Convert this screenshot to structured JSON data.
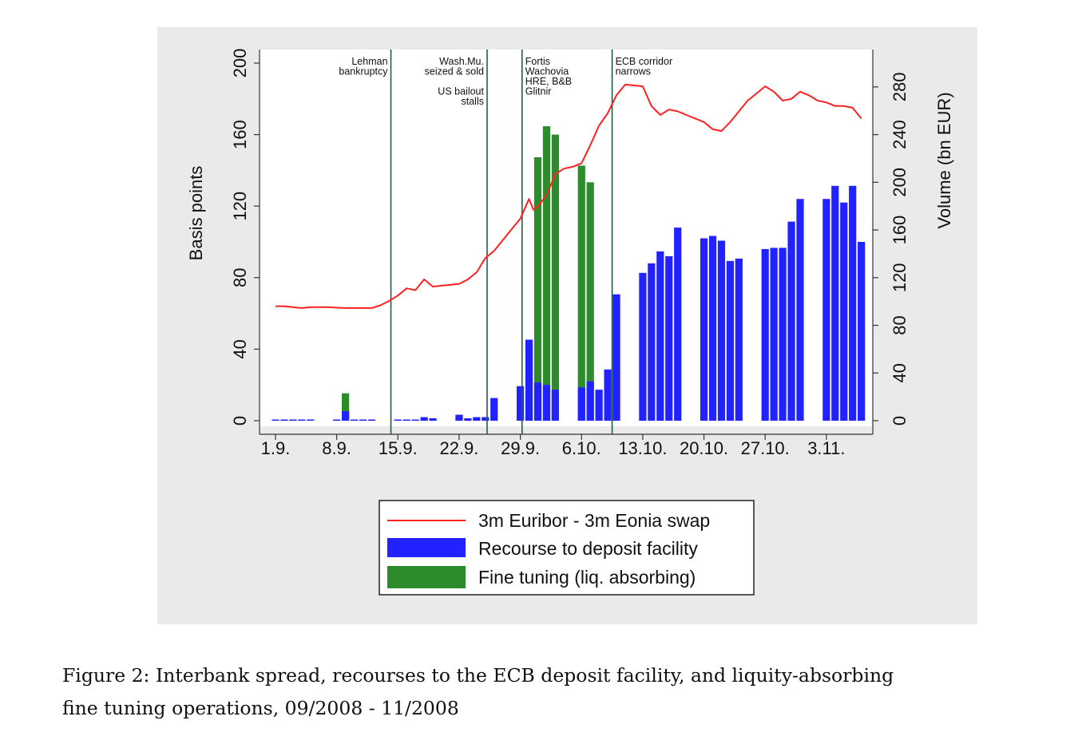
{
  "chart_data": {
    "type": "bar",
    "title": "",
    "ylabel_left": "Basis points",
    "ylabel_right": "Volume (bn EUR)",
    "ylim_left": [
      0,
      200
    ],
    "yticks_left": [
      0,
      40,
      80,
      120,
      160,
      200
    ],
    "ylim_right": [
      0,
      300
    ],
    "yticks_right": [
      0,
      40,
      80,
      120,
      160,
      200,
      240,
      280
    ],
    "x_range": [
      0,
      67
    ],
    "x_ticks": [
      {
        "day": 0,
        "label": "1.9."
      },
      {
        "day": 7,
        "label": "8.9."
      },
      {
        "day": 14,
        "label": "15.9."
      },
      {
        "day": 21,
        "label": "22.9."
      },
      {
        "day": 28,
        "label": "29.9."
      },
      {
        "day": 35,
        "label": "6.10."
      },
      {
        "day": 42,
        "label": "13.10."
      },
      {
        "day": 49,
        "label": "20.10."
      },
      {
        "day": 56,
        "label": "27.10."
      },
      {
        "day": 63,
        "label": "3.11."
      }
    ],
    "events": [
      {
        "day": 13.2,
        "lines": [
          "Lehman",
          "bankruptcy"
        ],
        "anchor": "end"
      },
      {
        "day": 24.2,
        "lines": [
          "Wash.Mu.",
          "seized & sold",
          "",
          "US bailout",
          "stalls"
        ],
        "anchor": "end"
      },
      {
        "day": 28.2,
        "lines": [
          "Fortis",
          "Wachovia",
          "HRE, B&B",
          "Glitnir"
        ],
        "anchor": "start"
      },
      {
        "day": 38.5,
        "lines": [
          "ECB corridor",
          "narrows"
        ],
        "anchor": "start"
      }
    ],
    "series": [
      {
        "name": "3m Euribor - 3m Eonia swap",
        "axis": "left",
        "color": "#ff2020",
        "points": [
          [
            0,
            64
          ],
          [
            1,
            64
          ],
          [
            2,
            63.5
          ],
          [
            3,
            63
          ],
          [
            4,
            63.5
          ],
          [
            5,
            63.5
          ],
          [
            6,
            63.5
          ],
          [
            7,
            63.2
          ],
          [
            8,
            63
          ],
          [
            9,
            63
          ],
          [
            10,
            63
          ],
          [
            11,
            63
          ],
          [
            12,
            64.5
          ],
          [
            13,
            67
          ],
          [
            14,
            70
          ],
          [
            15,
            74
          ],
          [
            16,
            73
          ],
          [
            17,
            79
          ],
          [
            18,
            75
          ],
          [
            19,
            75.5
          ],
          [
            20,
            76
          ],
          [
            21,
            76.5
          ],
          [
            22,
            79
          ],
          [
            23,
            83
          ],
          [
            24,
            91
          ],
          [
            25,
            95
          ],
          [
            26,
            101
          ],
          [
            27,
            107
          ],
          [
            28,
            113
          ],
          [
            29,
            124
          ],
          [
            29.5,
            118
          ],
          [
            30,
            120
          ],
          [
            31,
            126
          ],
          [
            32,
            138
          ],
          [
            33,
            141
          ],
          [
            34,
            142
          ],
          [
            35,
            144
          ],
          [
            36,
            154
          ],
          [
            37,
            165
          ],
          [
            38,
            172
          ],
          [
            39,
            182
          ],
          [
            40,
            188
          ],
          [
            41,
            187.5
          ],
          [
            42,
            187
          ],
          [
            43,
            176
          ],
          [
            44,
            171
          ],
          [
            45,
            174
          ],
          [
            46,
            173
          ],
          [
            47,
            171
          ],
          [
            48,
            169
          ],
          [
            49,
            167
          ],
          [
            50,
            163
          ],
          [
            51,
            162
          ],
          [
            52,
            167
          ],
          [
            53,
            173
          ],
          [
            54,
            179
          ],
          [
            55,
            183
          ],
          [
            56,
            187
          ],
          [
            57,
            184
          ],
          [
            58,
            179
          ],
          [
            59,
            180
          ],
          [
            60,
            184
          ],
          [
            61,
            182
          ],
          [
            62,
            179
          ],
          [
            63,
            178
          ],
          [
            64,
            176
          ],
          [
            65,
            176
          ],
          [
            66,
            175
          ],
          [
            67,
            169
          ]
        ]
      },
      {
        "name": "Recourse to deposit facility",
        "axis": "right",
        "color": "#2222ff",
        "bars": [
          [
            0,
            1
          ],
          [
            1,
            1
          ],
          [
            2,
            1
          ],
          [
            3,
            1
          ],
          [
            4,
            1
          ],
          [
            7,
            1
          ],
          [
            8,
            8
          ],
          [
            9,
            1
          ],
          [
            10,
            1
          ],
          [
            11,
            1
          ],
          [
            14,
            1
          ],
          [
            15,
            1
          ],
          [
            16,
            1
          ],
          [
            17,
            3
          ],
          [
            18,
            2
          ],
          [
            21,
            5
          ],
          [
            22,
            2
          ],
          [
            23,
            3
          ],
          [
            24,
            3
          ],
          [
            25,
            19
          ],
          [
            28,
            29
          ],
          [
            29,
            68
          ],
          [
            30,
            32
          ],
          [
            31,
            30
          ],
          [
            32,
            26
          ],
          [
            35,
            28
          ],
          [
            36,
            33
          ],
          [
            37,
            26
          ],
          [
            38,
            43
          ],
          [
            39,
            106
          ],
          [
            42,
            124
          ],
          [
            43,
            132
          ],
          [
            44,
            142
          ],
          [
            45,
            138
          ],
          [
            46,
            162
          ],
          [
            49,
            153
          ],
          [
            50,
            155
          ],
          [
            51,
            151
          ],
          [
            52,
            134
          ],
          [
            53,
            136
          ],
          [
            56,
            144
          ],
          [
            57,
            145
          ],
          [
            58,
            145
          ],
          [
            59,
            167
          ],
          [
            60,
            186
          ],
          [
            63,
            186
          ],
          [
            64,
            197
          ],
          [
            65,
            183
          ],
          [
            66,
            197
          ],
          [
            67,
            150
          ]
        ]
      },
      {
        "name": "Fine tuning (liq. absorbing)",
        "axis": "right",
        "color": "#2c8c2c",
        "bars": [
          [
            8,
            23
          ],
          [
            30,
            221
          ],
          [
            31,
            247
          ],
          [
            32,
            240
          ],
          [
            35,
            214
          ],
          [
            36,
            200
          ]
        ]
      }
    ],
    "legend": "bottom-center"
  },
  "caption": {
    "line1": "Figure 2:  Interbank spread, recourses to the ECB deposit facility, and liquity-absorbing",
    "line2": "fine tuning operations, 09/2008 - 11/2008"
  }
}
